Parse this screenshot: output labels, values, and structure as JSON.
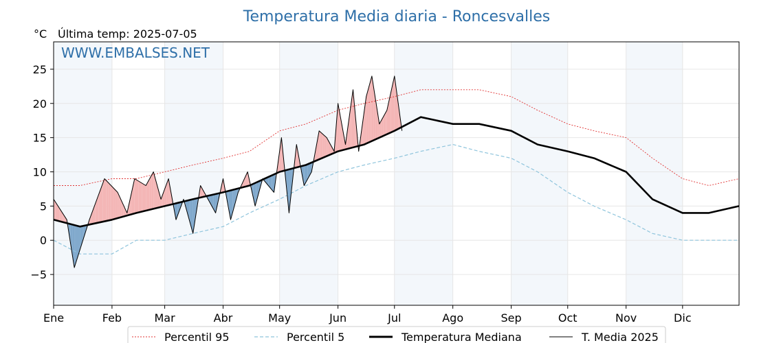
{
  "chart_data": {
    "type": "line",
    "title": "Temperatura Media diaria - Roncesvalles",
    "unit": "°C",
    "last_reading_label": "Última temp: 2025-07-05",
    "watermark": "WWW.EMBALSES.NET",
    "ylim": [
      -9.5,
      29
    ],
    "yticks": [
      -5,
      0,
      5,
      10,
      15,
      20,
      25
    ],
    "ytick_labels": [
      "−5",
      "0",
      "5",
      "10",
      "15",
      "20",
      "25"
    ],
    "x_months": [
      "Ene",
      "Feb",
      "Mar",
      "Abr",
      "May",
      "Jun",
      "Jul",
      "Ago",
      "Sep",
      "Oct",
      "Nov",
      "Dic"
    ],
    "month_start_days": [
      1,
      32,
      60,
      91,
      121,
      152,
      182,
      213,
      244,
      274,
      305,
      335
    ],
    "days_in_year": 365,
    "grid": true,
    "legend_placement": "bottom",
    "series": [
      {
        "name": "Percentil 95",
        "style": "dotted",
        "color": "#e03030",
        "days": [
          1,
          15,
          32,
          45,
          60,
          75,
          91,
          105,
          121,
          135,
          152,
          166,
          182,
          196,
          213,
          227,
          244,
          258,
          274,
          288,
          305,
          319,
          335,
          349,
          365
        ],
        "values": [
          8,
          8,
          9,
          9,
          10,
          11,
          12,
          13,
          16,
          17,
          19,
          20,
          21,
          22,
          22,
          22,
          21,
          19,
          17,
          16,
          15,
          12,
          9,
          8,
          9
        ]
      },
      {
        "name": "Percentil 5",
        "style": "dashed",
        "color": "#8ec4dc",
        "days": [
          1,
          15,
          32,
          45,
          60,
          75,
          91,
          105,
          121,
          135,
          152,
          166,
          182,
          196,
          213,
          227,
          244,
          258,
          274,
          288,
          305,
          319,
          335,
          349,
          365
        ],
        "values": [
          0,
          -2,
          -2,
          0,
          0,
          1,
          2,
          4,
          6,
          8,
          10,
          11,
          12,
          13,
          14,
          13,
          12,
          10,
          7,
          5,
          3,
          1,
          0,
          0,
          0
        ]
      },
      {
        "name": "Temperatura Mediana",
        "style": "solid-thick",
        "color": "#000000",
        "days": [
          1,
          15,
          32,
          45,
          60,
          75,
          91,
          105,
          121,
          135,
          152,
          166,
          182,
          196,
          213,
          227,
          244,
          258,
          274,
          288,
          305,
          319,
          335,
          349,
          365
        ],
        "values": [
          3,
          2,
          3,
          4,
          5,
          6,
          7,
          8,
          10,
          11,
          13,
          14,
          16,
          18,
          17,
          17,
          16,
          14,
          13,
          12,
          10,
          6,
          4,
          4,
          5
        ]
      },
      {
        "name": "T. Media 2025",
        "style": "solid-thin",
        "color": "#000000",
        "days": [
          1,
          8,
          12,
          20,
          28,
          35,
          40,
          44,
          50,
          54,
          58,
          62,
          66,
          70,
          75,
          79,
          83,
          87,
          91,
          95,
          99,
          104,
          108,
          112,
          118,
          122,
          126,
          130,
          134,
          138,
          142,
          146,
          150,
          152,
          156,
          160,
          163,
          167,
          170,
          174,
          178,
          182,
          186
        ],
        "values": [
          6,
          3,
          -4,
          3,
          9,
          7,
          4,
          9,
          8,
          10,
          6,
          9,
          3,
          6,
          1,
          8,
          6,
          4,
          9,
          3,
          7,
          10,
          5,
          9,
          7,
          15,
          4,
          14,
          8,
          10,
          16,
          15,
          13,
          20,
          14,
          22,
          13,
          21,
          24,
          17,
          19,
          24,
          16
        ]
      }
    ]
  }
}
